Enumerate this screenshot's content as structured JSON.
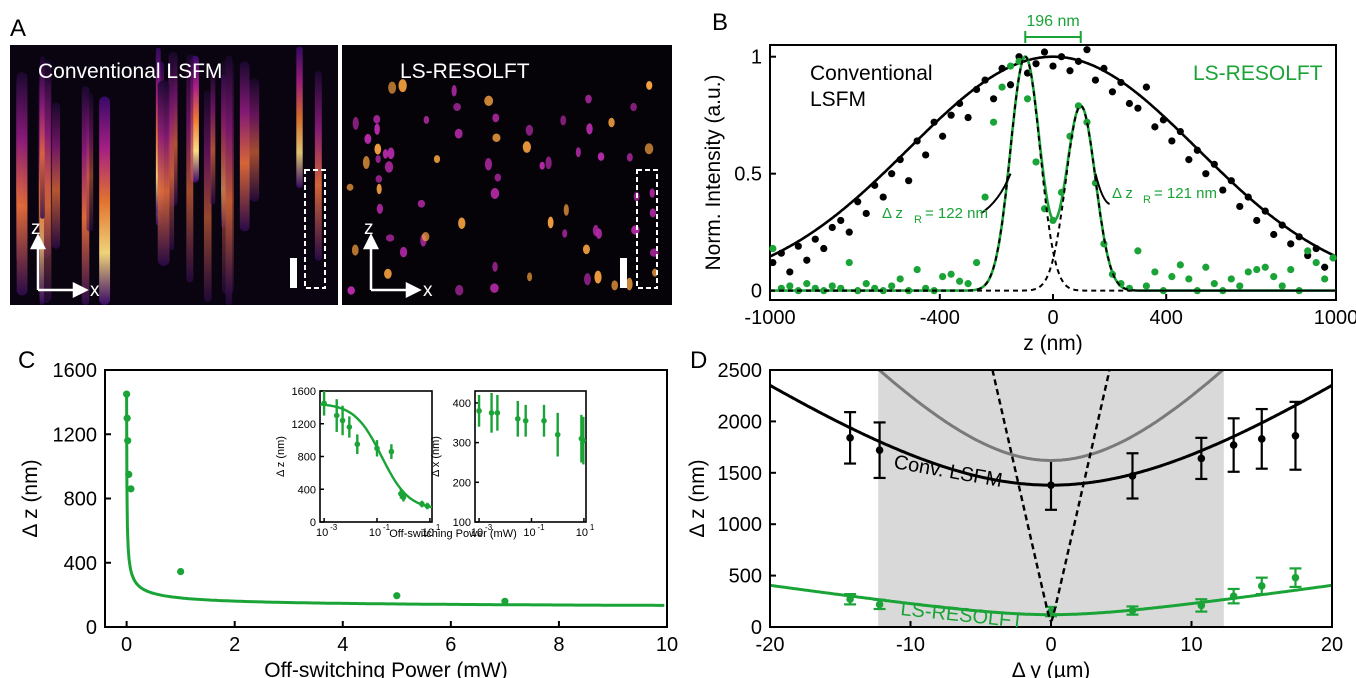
{
  "panels": {
    "A": {
      "letter": "A",
      "left_title": "Conventional LSFM",
      "right_title": "LS-RESOLFT",
      "axis_z": "z",
      "axis_x": "x"
    },
    "B": {
      "letter": "B",
      "label_conv_1": "Conventional",
      "label_conv_2": "LSFM",
      "label_resolft": "LS-RESOLFT",
      "bracket_label": "196 nm",
      "ann_left": "Δ z",
      "ann_left_sub": "R",
      "ann_left_val": "= 122 nm",
      "ann_right": "Δ z",
      "ann_right_sub": "R",
      "ann_right_val": "= 121 nm"
    },
    "C": {
      "letter": "C",
      "inset1_ylabel": "Δ z (nm)",
      "inset2_ylabel": "Δ x (nm)",
      "inset_xlabel": "Off-switching Power (mW)"
    },
    "D": {
      "letter": "D",
      "label_conv": "Conv. LSFM",
      "label_resolft": "LS-RESOLFT"
    }
  },
  "colors": {
    "green": "#1aa336",
    "black": "#000000",
    "gray_curve": "#7a7a7a",
    "shade": "#d9d9d9"
  },
  "chart_data": [
    {
      "panel": "B",
      "type": "scatter",
      "xlabel": "z (nm)",
      "ylabel": "Norm. Intensity (a.u.)",
      "xlim": [
        -1000,
        1000
      ],
      "ylim": [
        -0.04,
        1.05
      ],
      "x_ticks": [
        -1000,
        -400,
        0,
        400,
        1000
      ],
      "y_ticks": [
        0,
        0.5,
        1
      ],
      "y_tick_labels": [
        "0",
        "0.5",
        "1"
      ],
      "series": [
        {
          "name": "Conventional LSFM",
          "color": "#000000",
          "fit": {
            "kind": "gaussian",
            "amplitude": 1.0,
            "center": 0,
            "sigma": 510
          },
          "x": [
            -990,
            -960,
            -930,
            -900,
            -870,
            -840,
            -810,
            -780,
            -750,
            -720,
            -690,
            -660,
            -630,
            -600,
            -570,
            -540,
            -510,
            -480,
            -450,
            -420,
            -390,
            -360,
            -330,
            -300,
            -270,
            -240,
            -210,
            -180,
            -150,
            -120,
            -90,
            -60,
            -30,
            0,
            30,
            60,
            90,
            120,
            150,
            180,
            210,
            240,
            270,
            300,
            330,
            360,
            390,
            420,
            450,
            480,
            510,
            540,
            570,
            600,
            630,
            660,
            690,
            720,
            750,
            780,
            810,
            840,
            870,
            900,
            930,
            960,
            990
          ],
          "y": [
            0.12,
            0.16,
            0.08,
            0.19,
            0.13,
            0.22,
            0.18,
            0.27,
            0.3,
            0.25,
            0.38,
            0.33,
            0.45,
            0.4,
            0.5,
            0.56,
            0.47,
            0.64,
            0.58,
            0.72,
            0.66,
            0.75,
            0.8,
            0.74,
            0.86,
            0.9,
            0.82,
            0.95,
            0.88,
            1.0,
            0.93,
            0.97,
            1.02,
            0.96,
            1.0,
            0.94,
            0.98,
            1.03,
            0.9,
            0.95,
            0.85,
            0.89,
            0.8,
            0.78,
            0.87,
            0.7,
            0.73,
            0.64,
            0.68,
            0.56,
            0.6,
            0.5,
            0.54,
            0.43,
            0.47,
            0.36,
            0.4,
            0.3,
            0.34,
            0.24,
            0.28,
            0.2,
            0.23,
            0.15,
            0.18,
            0.1,
            0.14
          ]
        },
        {
          "name": "LS-RESOLFT",
          "color": "#1aa336",
          "fit": {
            "kind": "double-gaussian",
            "amp1": 1.0,
            "center1": -98,
            "sigma1": 52,
            "amp2": 0.79,
            "center2": 98,
            "sigma2": 52
          },
          "x": [
            -990,
            -960,
            -930,
            -900,
            -870,
            -840,
            -810,
            -780,
            -750,
            -720,
            -690,
            -660,
            -630,
            -600,
            -570,
            -540,
            -510,
            -480,
            -450,
            -420,
            -390,
            -360,
            -330,
            -300,
            -270,
            -240,
            -210,
            -180,
            -150,
            -120,
            -90,
            -60,
            -30,
            0,
            30,
            60,
            90,
            120,
            150,
            180,
            210,
            240,
            270,
            300,
            330,
            360,
            390,
            420,
            450,
            480,
            510,
            540,
            570,
            600,
            630,
            660,
            690,
            720,
            750,
            780,
            810,
            840,
            870,
            900,
            930,
            960,
            990
          ],
          "y": [
            0.18,
            0.01,
            0.02,
            0.0,
            0.03,
            0.01,
            0.0,
            0.02,
            0.01,
            0.12,
            0.0,
            0.03,
            0.01,
            0.0,
            0.02,
            0.05,
            0.0,
            0.09,
            0.01,
            0.0,
            0.06,
            0.07,
            0.04,
            0.03,
            0.12,
            0.4,
            0.72,
            0.87,
            0.96,
            0.98,
            0.82,
            0.55,
            0.35,
            0.3,
            0.42,
            0.66,
            0.79,
            0.72,
            0.46,
            0.2,
            0.07,
            0.03,
            0.01,
            0.17,
            0.02,
            0.08,
            0.0,
            0.06,
            0.11,
            0.05,
            0.0,
            0.1,
            0.03,
            0.0,
            0.05,
            0.02,
            0.08,
            0.09,
            0.1,
            0.06,
            0.02,
            0.09,
            0.0,
            0.17,
            0.12,
            0.05,
            0.14
          ]
        },
        {
          "name": "",
          "color": "#000000",
          "style": "dashed",
          "fit": {
            "kind": "gaussian",
            "amplitude": 1.0,
            "center": -98,
            "sigma": 52
          }
        },
        {
          "name": "",
          "color": "#000000",
          "style": "dashed",
          "fit": {
            "kind": "gaussian",
            "amplitude": 0.79,
            "center": 98,
            "sigma": 52
          }
        }
      ]
    },
    {
      "panel": "C",
      "type": "scatter",
      "xlabel": "Off-switching Power (mW)",
      "ylabel": "Δ z (nm)",
      "xlim": [
        -0.4,
        10
      ],
      "ylim": [
        0,
        1600
      ],
      "x_ticks": [
        0,
        2,
        4,
        6,
        8,
        10
      ],
      "y_ticks": [
        0,
        400,
        800,
        1200,
        1600
      ],
      "series": [
        {
          "name": "LS-RESOLFT",
          "color": "#1aa336",
          "x": [
            0.0,
            0.01,
            0.02,
            0.04,
            0.08,
            1.0,
            5.0,
            7.0
          ],
          "y": [
            1450,
            1300,
            1160,
            950,
            860,
            345,
            195,
            160
          ],
          "fit": {
            "kind": "1/sqrt",
            "a": 1450,
            "b": 7.7,
            "floor": 113
          }
        }
      ],
      "insets": [
        {
          "type": "scatter",
          "x_scale": "log",
          "xlim": [
            0.0007,
            12
          ],
          "ylim": [
            0,
            1600
          ],
          "x_ticks": [
            0.001,
            0.1,
            10
          ],
          "x_tick_labels": [
            "10",
            "10",
            "10"
          ],
          "x_tick_exps": [
            "-3",
            "-1",
            "1"
          ],
          "y_ticks": [
            0,
            400,
            800,
            1200,
            1600
          ],
          "x": [
            0.001,
            0.003,
            0.005,
            0.009,
            0.018,
            0.1,
            0.35,
            0.8,
            1.0,
            5.0,
            8.0
          ],
          "y": [
            1450,
            1300,
            1240,
            1160,
            950,
            900,
            860,
            345,
            300,
            220,
            195
          ],
          "err": [
            150,
            200,
            180,
            130,
            120,
            100,
            90,
            60,
            50,
            40,
            40
          ]
        },
        {
          "type": "scatter",
          "x_scale": "log",
          "xlim": [
            0.0007,
            12
          ],
          "ylim": [
            100,
            430
          ],
          "x_ticks": [
            0.001,
            0.1,
            10
          ],
          "x_tick_labels": [
            "10",
            "10",
            "10"
          ],
          "x_tick_exps": [
            "-3",
            "-1",
            "1"
          ],
          "y_ticks": [
            100,
            200,
            300,
            400
          ],
          "x": [
            0.001,
            0.003,
            0.005,
            0.03,
            0.06,
            0.3,
            1.0,
            8.0,
            9.5
          ],
          "y": [
            380,
            375,
            375,
            360,
            355,
            355,
            320,
            310,
            305
          ],
          "err": [
            40,
            50,
            45,
            45,
            40,
            40,
            55,
            60,
            60
          ]
        }
      ]
    },
    {
      "panel": "D",
      "type": "scatter",
      "xlabel": "Δ y (µm)",
      "ylabel": "Δ z (nm)",
      "xlim": [
        -20,
        20
      ],
      "ylim": [
        0,
        2500
      ],
      "x_ticks": [
        -20,
        -10,
        0,
        10,
        20
      ],
      "y_ticks": [
        0,
        500,
        1000,
        1500,
        2000,
        2500
      ],
      "shaded_range": [
        -12.3,
        12.3
      ],
      "series": [
        {
          "name": "Conv. LSFM",
          "color": "#000000",
          "x": [
            -14.3,
            -12.2,
            0,
            5.8,
            10.7,
            13.0,
            15.0,
            17.4
          ],
          "y": [
            1840,
            1720,
            1380,
            1470,
            1640,
            1770,
            1830,
            1860
          ],
          "err": [
            250,
            270,
            240,
            220,
            200,
            260,
            290,
            330
          ],
          "fit": {
            "kind": "hyperbola",
            "w0": 1380,
            "yR": 14.5
          }
        },
        {
          "name": "LS-RESOLFT",
          "color": "#1aa336",
          "x": [
            -14.3,
            -12.2,
            0,
            5.8,
            10.7,
            13.0,
            15.0,
            17.4
          ],
          "y": [
            270,
            220,
            150,
            160,
            210,
            300,
            400,
            480
          ],
          "err": [
            50,
            45,
            45,
            40,
            60,
            70,
            80,
            90
          ],
          "fit": {
            "kind": "hyperbola",
            "w0": 120,
            "yR": 6.2
          }
        },
        {
          "name": "",
          "color": "#7a7a7a",
          "fit": {
            "kind": "hyperbola",
            "w0": 1620,
            "yR": 10.4
          }
        },
        {
          "name": "",
          "color": "#000000",
          "style": "dashed",
          "fit": {
            "kind": "hyperbola",
            "w0": 60,
            "yR": 0.1
          }
        }
      ]
    }
  ]
}
